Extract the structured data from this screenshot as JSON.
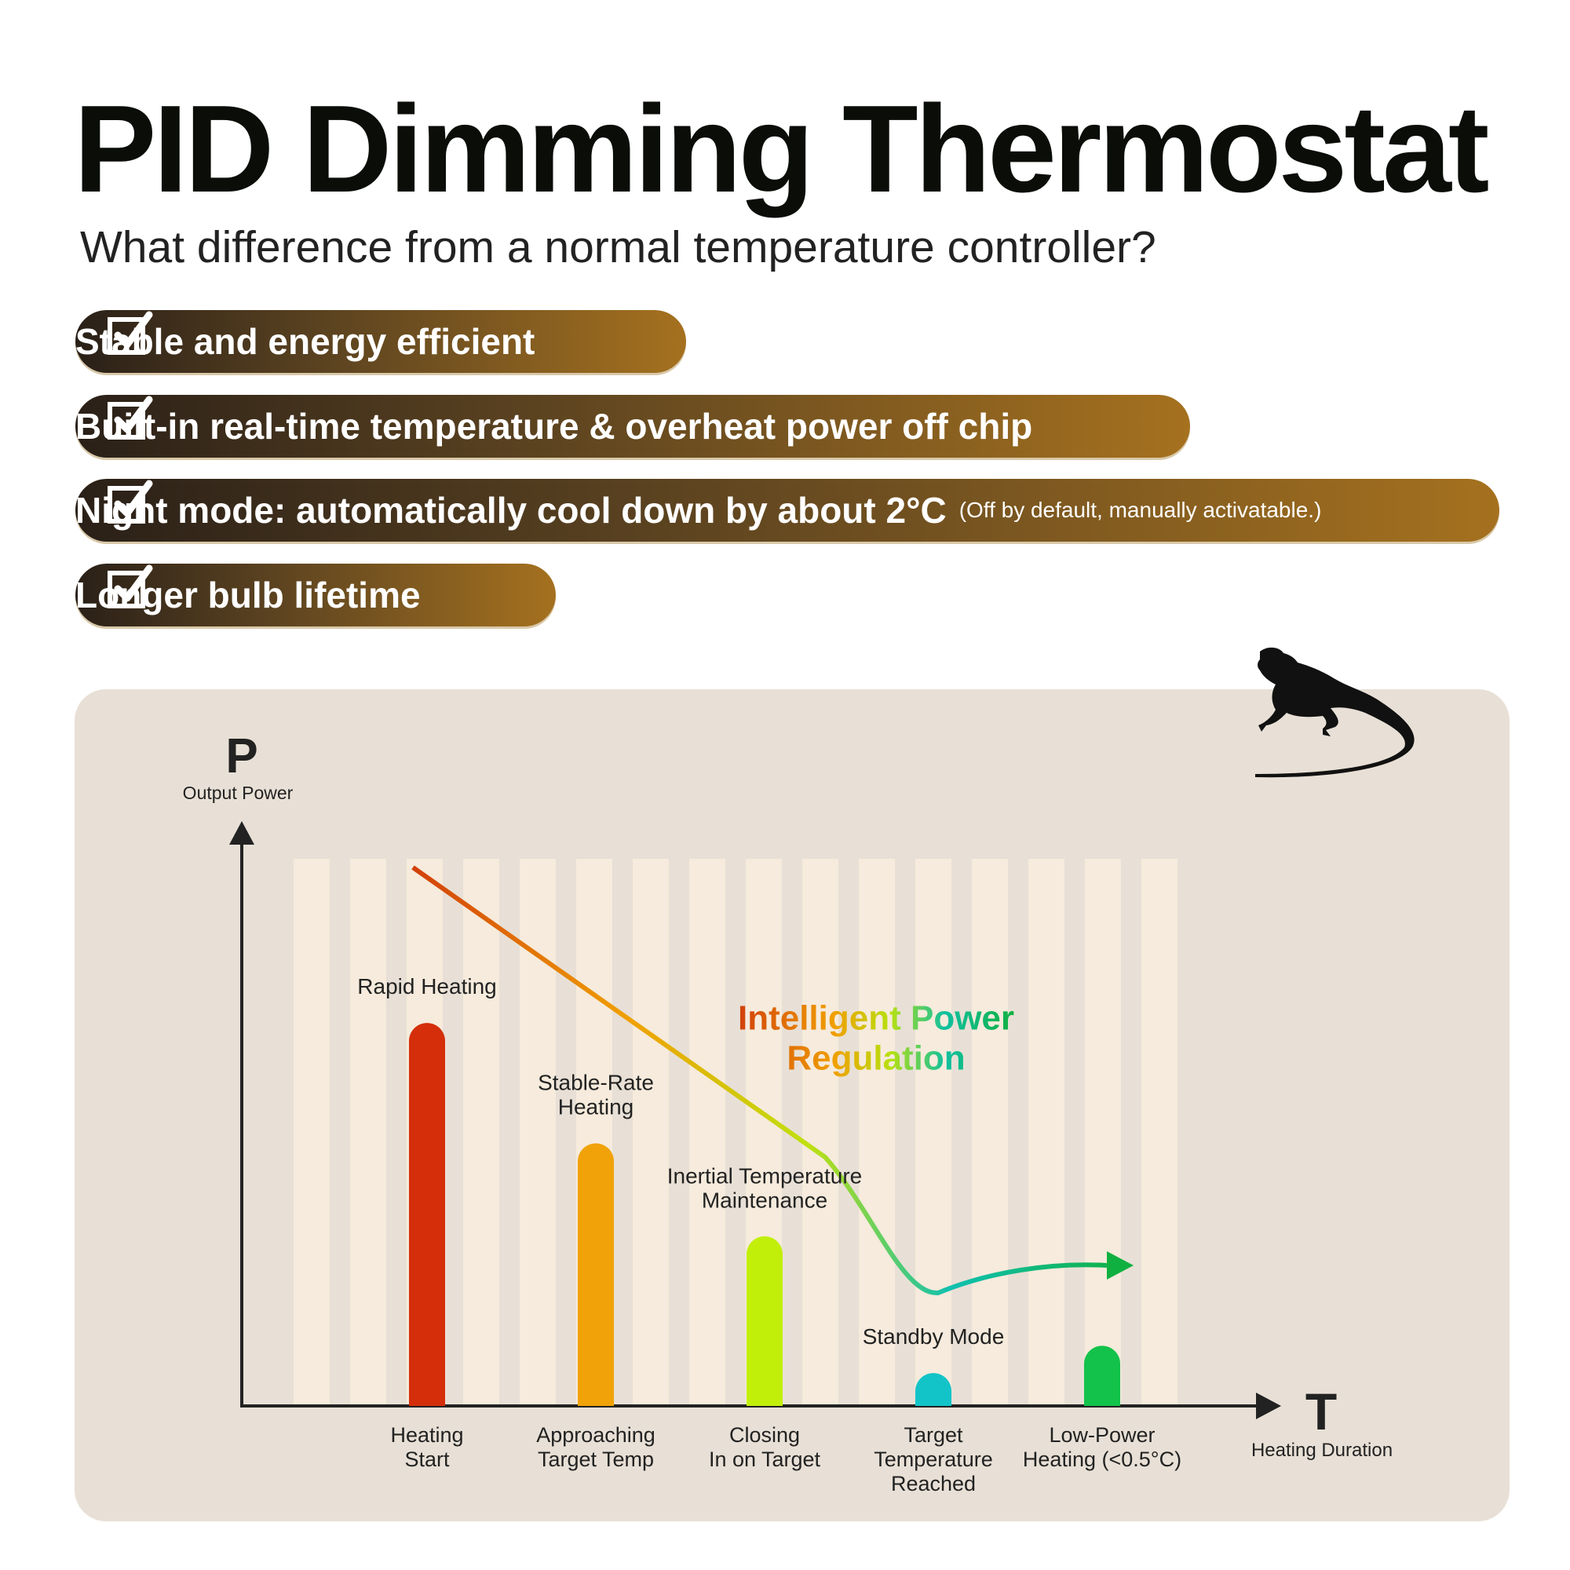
{
  "header": {
    "title": "PID Dimming Thermostat",
    "subtitle": "What difference from a normal temperature controller?"
  },
  "features": [
    {
      "text": "Stable and energy efficient"
    },
    {
      "text": "Built-in real-time temperature & overheat power off chip"
    },
    {
      "text": "Night mode: automatically cool down by about 2°C",
      "note": "(Off by default, manually activatable.)"
    },
    {
      "text": "Longer bulb lifetime"
    }
  ],
  "chart_data": {
    "type": "bar",
    "y_label": "P",
    "y_sublabel": "Output Power",
    "x_label": "T",
    "x_sublabel": "Heating Duration",
    "annotation": "Intelligent Power\nRegulation",
    "categories": [
      "Heating\nStart",
      "Approaching\nTarget Temp",
      "Closing\nIn on Target",
      "Target\nTemperature\nReached",
      "Low-Power\nHeating (<0.5°C)"
    ],
    "stage_labels": [
      "Rapid Heating",
      "Stable-Rate\nHeating",
      "Inertial Temperature\nMaintenance",
      "Standby Mode",
      null
    ],
    "values": [
      70,
      48,
      31,
      6,
      11
    ],
    "colors": [
      "#d42e0a",
      "#f0a208",
      "#c2ef0a",
      "#12c4c8",
      "#12c24a"
    ],
    "ylim": [
      0,
      100
    ]
  }
}
